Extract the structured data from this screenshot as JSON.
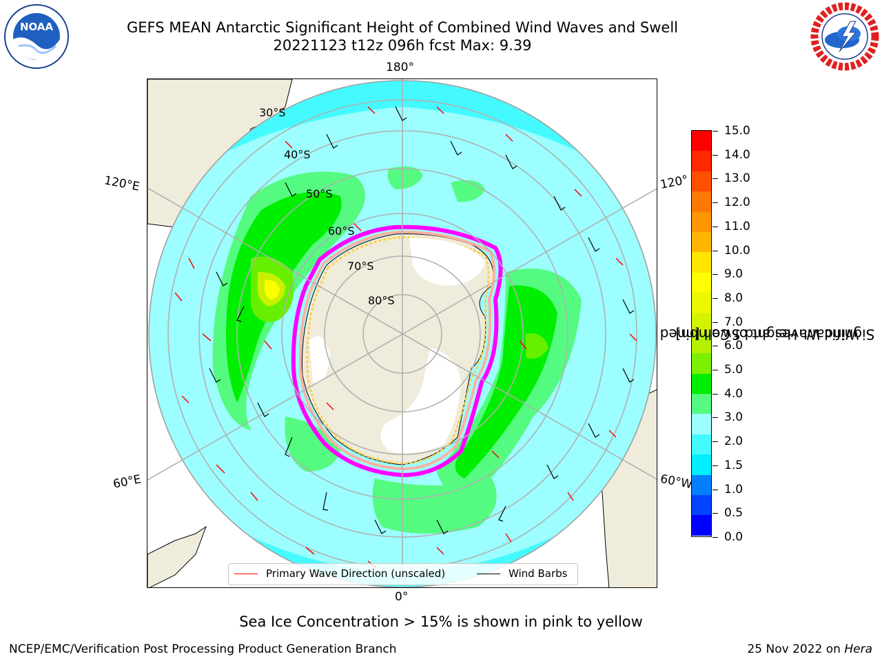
{
  "title_line1": "GEFS MEAN Antarctic Significant Height of Combined Wind Waves and Swell",
  "title_line2": "20221123 t12z 096h fcst   Max: 9.39",
  "map": {
    "longitude_labels": {
      "top": "180°",
      "bottom": "0°",
      "left_upper": "120°E",
      "left_lower": "60°E",
      "right_upper": "120°",
      "right_lower": "60°W"
    },
    "latitude_labels": [
      "30°S",
      "40°S",
      "50°S",
      "60°S",
      "70°S",
      "80°S"
    ],
    "legend": {
      "wave_direction": "Primary Wave Direction (unscaled)",
      "wind_barbs": "Wind Barbs"
    },
    "legend_colors": {
      "wave_direction": "#ff0000",
      "wind_barbs": "#000000"
    },
    "land_color": "#efecdc",
    "ocean_colors": {
      "1.5-2.0": "#45faff",
      "2.0-3.0": "#9cfefe",
      "3.0-4.0": "#54fb80",
      "4.0-5.0": "#00ee00",
      "5.0-6.0": "#66f000",
      "6.0-7.0": "#c8f000",
      "8.0-9.0": "#ffff00"
    },
    "ice_colors": [
      "#ff00ff",
      "#ffb0a0",
      "#ffd040"
    ]
  },
  "colorbar": {
    "label_line1": "Significant Height of Combined",
    "label_line2": "Wind Waves and Swell [m]",
    "ticks": [
      "15.0",
      "14.0",
      "13.0",
      "12.0",
      "11.0",
      "10.0",
      "9.0",
      "8.0",
      "7.0",
      "6.0",
      "5.0",
      "4.0",
      "3.0",
      "2.0",
      "1.5",
      "1.0",
      "0.5",
      "0.0"
    ],
    "colors_top_to_bottom": [
      "#ff0000",
      "#ff2800",
      "#ff5000",
      "#ff7800",
      "#ff9600",
      "#ffb400",
      "#ffe600",
      "#ffff00",
      "#ecf800",
      "#d2f400",
      "#b4f000",
      "#7cf000",
      "#00ee00",
      "#54fb80",
      "#9cfefe",
      "#45faff",
      "#00eeff",
      "#0080ff",
      "#0044ff",
      "#0000ff"
    ]
  },
  "caption": "Sea Ice Concentration > 15% is shown in pink to yellow",
  "footer_left": "NCEP/EMC/Verification Post Processing Product Generation Branch",
  "footer_date": "25 Nov 2022 on",
  "footer_host": "Hera",
  "logos": {
    "left": "noaa-logo",
    "right": "nws-logo",
    "left_text": "NOAA"
  }
}
